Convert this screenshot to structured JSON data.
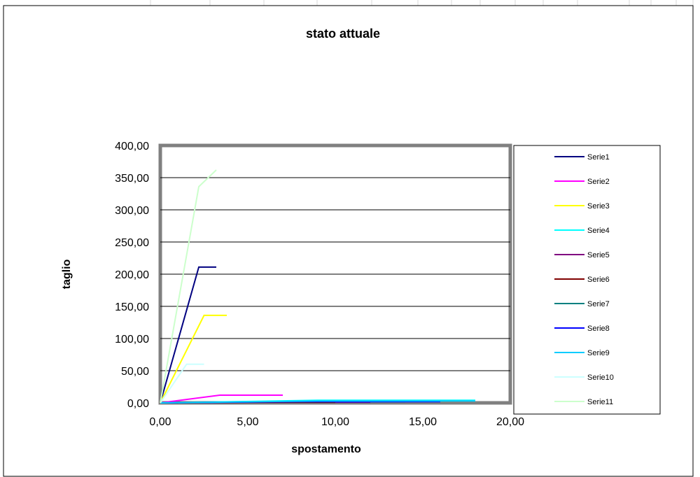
{
  "chart_data": {
    "type": "line",
    "title": "stato attuale",
    "xlabel": "spostamento",
    "ylabel": "taglio",
    "xlim": [
      0,
      20
    ],
    "ylim": [
      0,
      400
    ],
    "x_ticks": [
      "0,00",
      "5,00",
      "10,00",
      "15,00",
      "20,00"
    ],
    "y_ticks": [
      "0,00",
      "50,00",
      "100,00",
      "150,00",
      "200,00",
      "250,00",
      "300,00",
      "350,00",
      "400,00"
    ],
    "grid": true,
    "legend_position": "right",
    "series": [
      {
        "name": "Serie1",
        "color": "#000080",
        "points": [
          [
            0,
            0
          ],
          [
            2.2,
            211
          ],
          [
            3.2,
            211
          ]
        ]
      },
      {
        "name": "Serie2",
        "color": "#ff00ff",
        "points": [
          [
            0,
            0
          ],
          [
            3.4,
            12
          ],
          [
            7.0,
            12
          ]
        ]
      },
      {
        "name": "Serie3",
        "color": "#ffff00",
        "points": [
          [
            0,
            0
          ],
          [
            2.5,
            136
          ],
          [
            3.8,
            136
          ]
        ]
      },
      {
        "name": "Serie4",
        "color": "#00ffff",
        "points": [
          [
            0,
            0
          ],
          [
            9.0,
            4
          ],
          [
            18.0,
            4
          ]
        ]
      },
      {
        "name": "Serie5",
        "color": "#800080",
        "points": [
          [
            0,
            0
          ],
          [
            6.0,
            1
          ],
          [
            12.0,
            1
          ]
        ]
      },
      {
        "name": "Serie6",
        "color": "#800000",
        "points": [
          [
            0,
            0
          ],
          [
            5.0,
            1
          ],
          [
            10.0,
            1
          ]
        ]
      },
      {
        "name": "Serie7",
        "color": "#008080",
        "points": [
          [
            0,
            0
          ],
          [
            7.0,
            2
          ],
          [
            14.0,
            2
          ]
        ]
      },
      {
        "name": "Serie8",
        "color": "#0000ff",
        "points": [
          [
            0,
            0
          ],
          [
            8.0,
            2
          ],
          [
            16.0,
            2
          ]
        ]
      },
      {
        "name": "Serie9",
        "color": "#00ccff",
        "points": [
          [
            0,
            0
          ],
          [
            9.0,
            3
          ],
          [
            18.0,
            3
          ]
        ]
      },
      {
        "name": "Serie10",
        "color": "#ccffff",
        "points": [
          [
            0,
            0
          ],
          [
            1.5,
            60
          ],
          [
            2.5,
            60
          ]
        ]
      },
      {
        "name": "Serie11",
        "color": "#ccffcc",
        "points": [
          [
            0,
            0
          ],
          [
            2.2,
            336
          ],
          [
            3.2,
            362
          ]
        ]
      }
    ]
  }
}
